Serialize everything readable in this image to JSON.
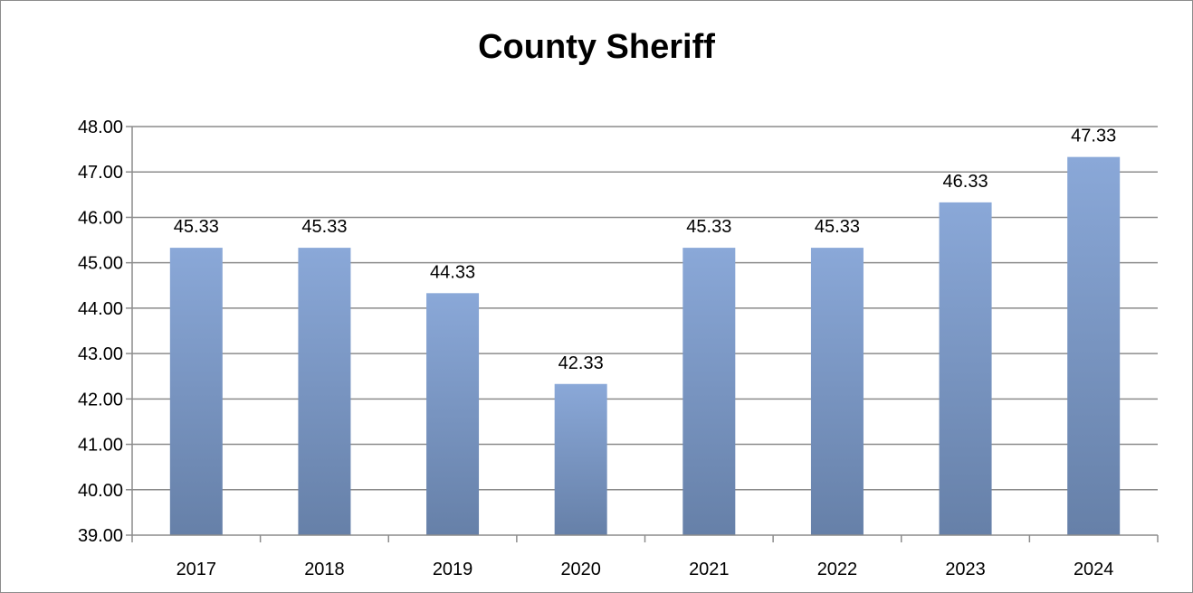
{
  "chart_data": {
    "type": "bar",
    "title": "County Sheriff",
    "xlabel": "",
    "ylabel": "",
    "categories": [
      "2017",
      "2018",
      "2019",
      "2020",
      "2021",
      "2022",
      "2023",
      "2024"
    ],
    "values": [
      45.33,
      45.33,
      44.33,
      42.33,
      45.33,
      45.33,
      46.33,
      47.33
    ],
    "data_labels": [
      "45.33",
      "45.33",
      "44.33",
      "42.33",
      "45.33",
      "45.33",
      "46.33",
      "47.33"
    ],
    "ylim": [
      39,
      48
    ],
    "yticks": [
      "39.00",
      "40.00",
      "41.00",
      "42.00",
      "43.00",
      "44.00",
      "45.00",
      "46.00",
      "47.00",
      "48.00"
    ],
    "grid": true,
    "legend": "none",
    "colors": {
      "bar_top": "#8aa8d8",
      "bar_bottom": "#6680a8",
      "grid": "#8c8c8c",
      "axis": "#8c8c8c"
    }
  }
}
